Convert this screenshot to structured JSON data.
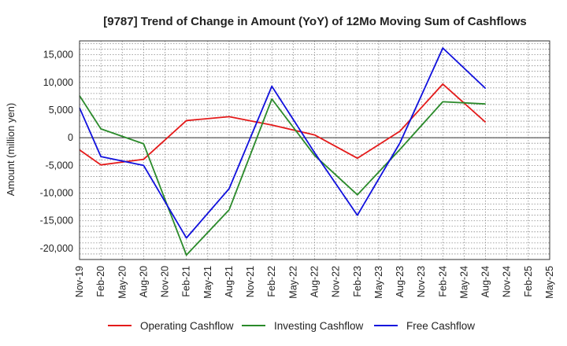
{
  "chart_data": {
    "type": "line",
    "title": "[9787]  Trend of Change in Amount (YoY) of 12Mo Moving Sum of Cashflows",
    "xlabel": "",
    "ylabel": "Amount (million yen)",
    "ylim": [
      -22000,
      17500
    ],
    "yticks": [
      -20000,
      -15000,
      -10000,
      -5000,
      0,
      5000,
      10000,
      15000
    ],
    "ytick_labels": [
      "-20,000",
      "-15,000",
      "-10,000",
      "-5,000",
      "0",
      "5,000",
      "10,000",
      "15,000"
    ],
    "categories": [
      "Nov-19",
      "Feb-20",
      "May-20",
      "Aug-20",
      "Nov-20",
      "Feb-21",
      "May-21",
      "Aug-21",
      "Nov-21",
      "Feb-22",
      "May-22",
      "Aug-22",
      "Nov-22",
      "Feb-23",
      "May-23",
      "Aug-23",
      "Nov-23",
      "Feb-24",
      "May-24",
      "Aug-24",
      "Nov-24",
      "Feb-25",
      "May-25"
    ],
    "grid": true,
    "legend_position": "bottom",
    "series": [
      {
        "name": "Operating Cashflow",
        "color": "#e41a1a",
        "values": [
          -2200,
          -4900,
          -4400,
          -3900,
          null,
          3100,
          null,
          3800,
          null,
          2300,
          null,
          500,
          null,
          -3700,
          null,
          1200,
          null,
          9700,
          null,
          2800,
          null,
          null,
          null
        ]
      },
      {
        "name": "Investing Cashflow",
        "color": "#2a8a2a",
        "values": [
          7600,
          1600,
          null,
          -1100,
          null,
          -21200,
          null,
          -13000,
          null,
          7000,
          null,
          -3200,
          null,
          -10300,
          null,
          -2100,
          null,
          6500,
          null,
          6100,
          null,
          null,
          null
        ]
      },
      {
        "name": "Free Cashflow",
        "color": "#1010dd",
        "values": [
          5400,
          -3400,
          null,
          -5000,
          null,
          -18100,
          null,
          -9200,
          null,
          9300,
          null,
          -2700,
          null,
          -14000,
          null,
          -900,
          null,
          16200,
          null,
          8900,
          null,
          null,
          null
        ]
      }
    ]
  }
}
